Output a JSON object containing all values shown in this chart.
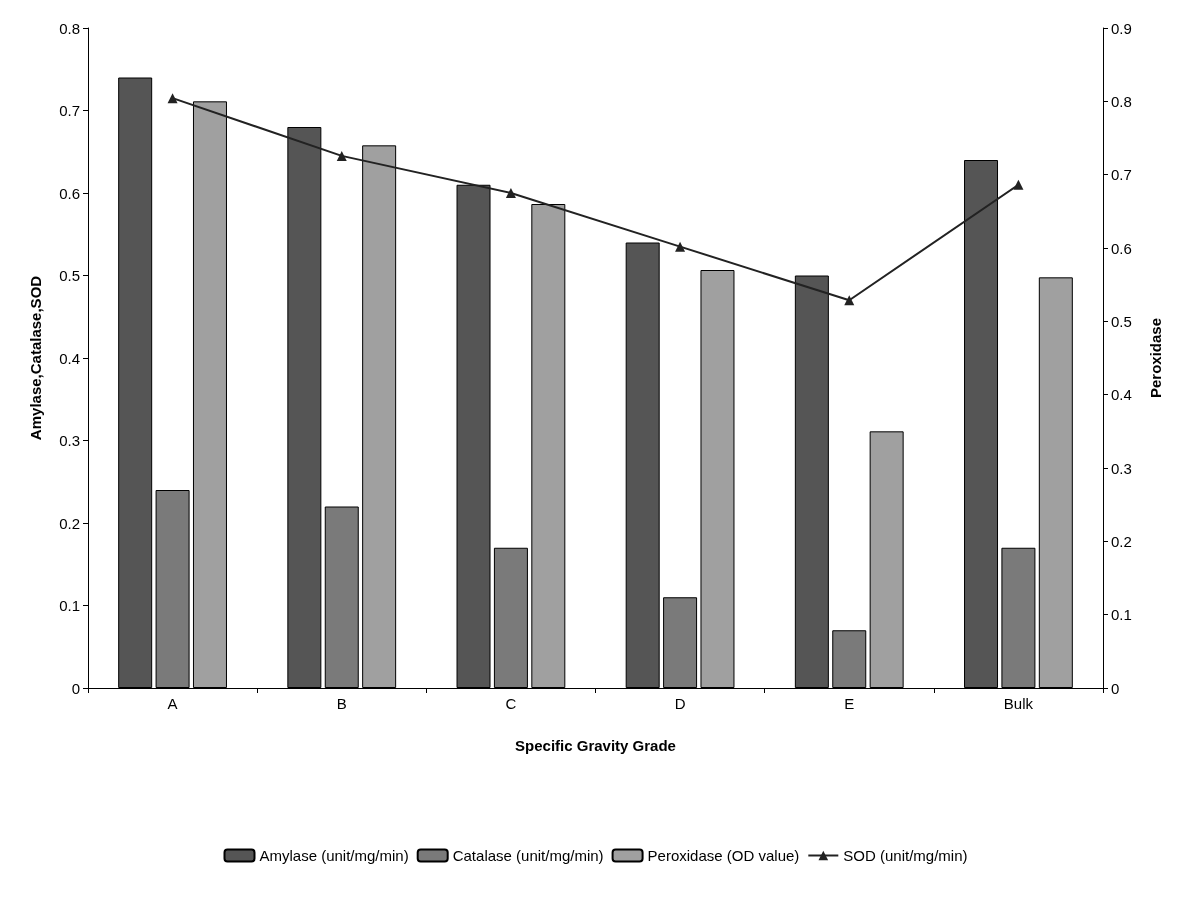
{
  "chart_data": {
    "type": "bar",
    "xlabel": "Specific Gravity Grade",
    "ylabel": "Amylase,Catalase,SOD",
    "y2label": "Peroxidase",
    "categories": [
      "A",
      "B",
      "C",
      "D",
      "E",
      "Bulk"
    ],
    "series": [
      {
        "name": "Amylase (unit/mg/min)",
        "color": "#555555",
        "values": [
          0.74,
          0.68,
          0.61,
          0.54,
          0.5,
          0.64
        ]
      },
      {
        "name": "Catalase (unit/mg/min)",
        "color": "#7a7a7a",
        "values": [
          0.24,
          0.22,
          0.17,
          0.11,
          0.07,
          0.17
        ]
      },
      {
        "name": "Peroxidase (OD value)",
        "color": "#a0a0a0",
        "axis": "y2",
        "values": [
          0.8,
          0.74,
          0.66,
          0.57,
          0.35,
          0.56
        ]
      },
      {
        "name": "SOD (unit/mg/min)",
        "type": "line",
        "color": "#222222",
        "values": [
          0.715,
          0.645,
          0.6,
          0.535,
          0.47,
          0.61
        ]
      }
    ],
    "ylim": [
      0,
      0.8
    ],
    "yticks": [
      0,
      0.1,
      0.2,
      0.3,
      0.4,
      0.5,
      0.6,
      0.7,
      0.8
    ],
    "y2lim": [
      0,
      0.9
    ],
    "y2ticks": [
      0,
      0.1,
      0.2,
      0.3,
      0.4,
      0.5,
      0.6,
      0.7,
      0.8,
      0.9
    ],
    "grid": false,
    "legend": "bottom",
    "marker": "triangle",
    "line_style": "solid"
  }
}
